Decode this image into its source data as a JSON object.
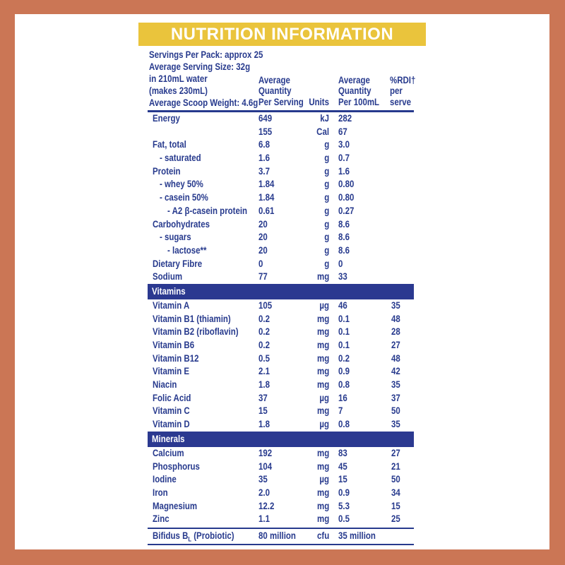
{
  "title": "NUTRITION INFORMATION",
  "serving_info": [
    "Servings Per Pack: approx 25",
    "Average Serving Size: 32g",
    "in 210mL water",
    "(makes 230mL)",
    "Average Scoop Weight: 4.6g"
  ],
  "columns": {
    "per_serving": "Average\nQuantity\nPer Serving",
    "units": "Units",
    "per_100ml": "Average\nQuantity\nPer 100mL",
    "rdi": "%RDI†\nper\nserve"
  },
  "sections": [
    {
      "bar": null,
      "rows": [
        {
          "label": "Energy",
          "indent": 0,
          "serving": "649",
          "unit": "kJ",
          "per100": "282",
          "rdi": ""
        },
        {
          "label": "",
          "indent": 0,
          "serving": "155",
          "unit": "Cal",
          "per100": "67",
          "rdi": ""
        },
        {
          "label": "Fat, total",
          "indent": 0,
          "serving": "6.8",
          "unit": "g",
          "per100": "3.0",
          "rdi": ""
        },
        {
          "label": "- saturated",
          "indent": 1,
          "serving": "1.6",
          "unit": "g",
          "per100": "0.7",
          "rdi": ""
        },
        {
          "label": "Protein",
          "indent": 0,
          "serving": "3.7",
          "unit": "g",
          "per100": "1.6",
          "rdi": ""
        },
        {
          "label": "- whey 50%",
          "indent": 1,
          "serving": "1.84",
          "unit": "g",
          "per100": "0.80",
          "rdi": ""
        },
        {
          "label": "- casein 50%",
          "indent": 1,
          "serving": "1.84",
          "unit": "g",
          "per100": "0.80",
          "rdi": ""
        },
        {
          "label": "- A2 β-casein protein",
          "indent": 2,
          "serving": "0.61",
          "unit": "g",
          "per100": "0.27",
          "rdi": ""
        },
        {
          "label": "Carbohydrates",
          "indent": 0,
          "serving": "20",
          "unit": "g",
          "per100": "8.6",
          "rdi": ""
        },
        {
          "label": "- sugars",
          "indent": 1,
          "serving": "20",
          "unit": "g",
          "per100": "8.6",
          "rdi": ""
        },
        {
          "label": "- lactose**",
          "indent": 2,
          "serving": "20",
          "unit": "g",
          "per100": "8.6",
          "rdi": ""
        },
        {
          "label": "Dietary Fibre",
          "indent": 0,
          "serving": "0",
          "unit": "g",
          "per100": "0",
          "rdi": ""
        },
        {
          "label": "Sodium",
          "indent": 0,
          "serving": "77",
          "unit": "mg",
          "per100": "33",
          "rdi": ""
        }
      ]
    },
    {
      "bar": "Vitamins",
      "rows": [
        {
          "label": "Vitamin A",
          "indent": 0,
          "serving": "105",
          "unit": "µg",
          "per100": "46",
          "rdi": "35"
        },
        {
          "label": "Vitamin B1 (thiamin)",
          "indent": 0,
          "serving": "0.2",
          "unit": "mg",
          "per100": "0.1",
          "rdi": "48"
        },
        {
          "label": "Vitamin B2 (riboflavin)",
          "indent": 0,
          "serving": "0.2",
          "unit": "mg",
          "per100": "0.1",
          "rdi": "28"
        },
        {
          "label": "Vitamin B6",
          "indent": 0,
          "serving": "0.2",
          "unit": "mg",
          "per100": "0.1",
          "rdi": "27"
        },
        {
          "label": "Vitamin B12",
          "indent": 0,
          "serving": "0.5",
          "unit": "mg",
          "per100": "0.2",
          "rdi": "48"
        },
        {
          "label": "Vitamin E",
          "indent": 0,
          "serving": "2.1",
          "unit": "mg",
          "per100": "0.9",
          "rdi": "42"
        },
        {
          "label": "Niacin",
          "indent": 0,
          "serving": "1.8",
          "unit": "mg",
          "per100": "0.8",
          "rdi": "35"
        },
        {
          "label": "Folic Acid",
          "indent": 0,
          "serving": "37",
          "unit": "µg",
          "per100": "16",
          "rdi": "37"
        },
        {
          "label": "Vitamin C",
          "indent": 0,
          "serving": "15",
          "unit": "mg",
          "per100": "7",
          "rdi": "50"
        },
        {
          "label": "Vitamin D",
          "indent": 0,
          "serving": "1.8",
          "unit": "µg",
          "per100": "0.8",
          "rdi": "35"
        }
      ]
    },
    {
      "bar": "Minerals",
      "rows": [
        {
          "label": "Calcium",
          "indent": 0,
          "serving": "192",
          "unit": "mg",
          "per100": "83",
          "rdi": "27"
        },
        {
          "label": "Phosphorus",
          "indent": 0,
          "serving": "104",
          "unit": "mg",
          "per100": "45",
          "rdi": "21"
        },
        {
          "label": "Iodine",
          "indent": 0,
          "serving": "35",
          "unit": "µg",
          "per100": "15",
          "rdi": "50"
        },
        {
          "label": "Iron",
          "indent": 0,
          "serving": "2.0",
          "unit": "mg",
          "per100": "0.9",
          "rdi": "34"
        },
        {
          "label": "Magnesium",
          "indent": 0,
          "serving": "12.2",
          "unit": "mg",
          "per100": "5.3",
          "rdi": "15"
        },
        {
          "label": "Zinc",
          "indent": 0,
          "serving": "1.1",
          "unit": "mg",
          "per100": "0.5",
          "rdi": "25"
        }
      ]
    }
  ],
  "probiotic": {
    "label_pre": "Bifidus B",
    "label_sub": "L",
    "label_post": " (Probiotic)",
    "serving": "80 million",
    "unit": "cfu",
    "per100": "35 million",
    "rdi": ""
  },
  "colors": {
    "frame": "#CB7655",
    "banner": "#EAC43C",
    "text_navy": "#273A8D",
    "bar_navy": "#2B3990",
    "panel": "#FFFFFF"
  }
}
